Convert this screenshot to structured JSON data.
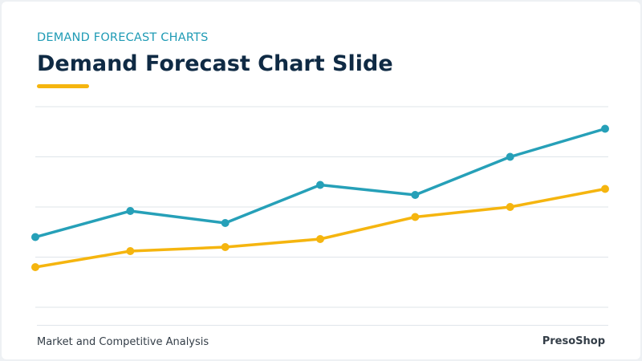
{
  "header": {
    "kicker": "DEMAND FORECAST CHARTS",
    "title": "Demand Forecast Chart Slide"
  },
  "footer": {
    "left_text": "Market and Competitive Analysis",
    "brand": "PresoShop"
  },
  "colors": {
    "kicker": "#1f9bb5",
    "title": "#0f2a44",
    "accent": "#f5b50f",
    "series_blue": "#26a0b8",
    "series_yellow": "#f5b50f",
    "grid": "#dfe5ea"
  },
  "chart_data": {
    "type": "line",
    "title": "",
    "xlabel": "",
    "ylabel": "",
    "x": [
      1,
      2,
      3,
      4,
      5,
      6,
      7
    ],
    "ylim": [
      0,
      100
    ],
    "grid": true,
    "legend": "none",
    "series": [
      {
        "color": "#26a0b8",
        "values": [
          35,
          48,
          42,
          61,
          56,
          75,
          89
        ]
      },
      {
        "color": "#f5b50f",
        "values": [
          20,
          28,
          30,
          34,
          45,
          50,
          59
        ]
      }
    ]
  }
}
